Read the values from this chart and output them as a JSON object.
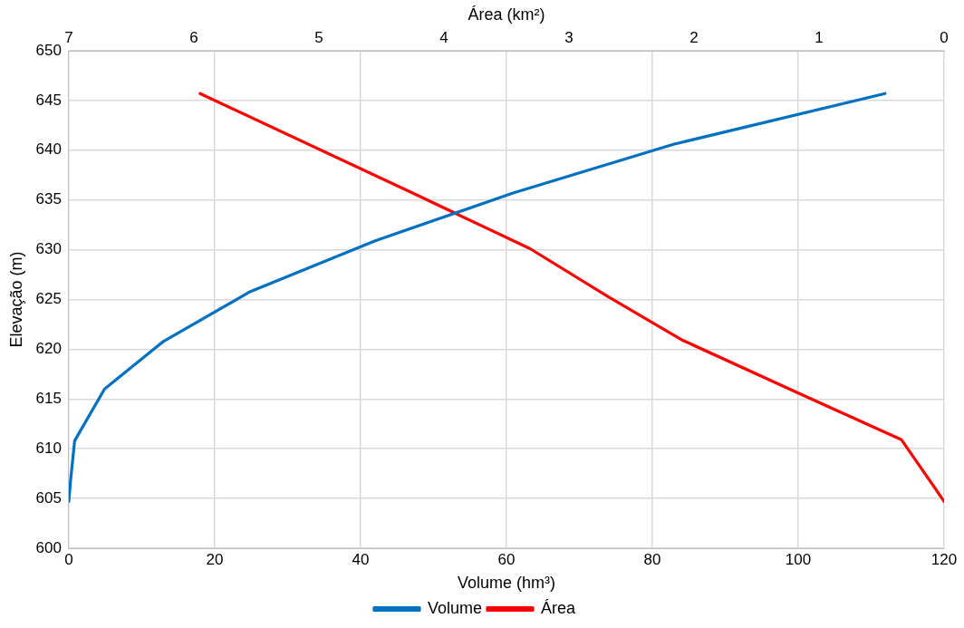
{
  "chart_data": {
    "type": "line",
    "xlabel": "Volume (hm³)",
    "x2label": "Área (km²)",
    "ylabel": "Elevação (m)",
    "xlim": [
      0,
      120
    ],
    "xticks": [
      0,
      20,
      40,
      60,
      80,
      100,
      120
    ],
    "x2lim": [
      7,
      0
    ],
    "x2ticks": [
      7,
      6,
      5,
      4,
      3,
      2,
      1,
      0
    ],
    "ylim": [
      600,
      650
    ],
    "yticks": [
      600,
      605,
      610,
      615,
      620,
      625,
      630,
      635,
      640,
      645,
      650
    ],
    "grid": true,
    "legend": "bottom",
    "marker": "none",
    "line_style": "solid",
    "series": [
      {
        "name": "Volume",
        "color": "#0070c0",
        "x": [
          0,
          0.2,
          0.8,
          4.9,
          13,
          24.9,
          42,
          60.9,
          82.9,
          111.9
        ],
        "values": [
          604.7,
          606.5,
          610.8,
          616,
          620.8,
          625.8,
          630.9,
          635.7,
          640.6,
          645.7
        ]
      },
      {
        "name": "Área",
        "color": "#ff0000",
        "axis": "x2",
        "x": [
          5.95,
          4.25,
          3.31,
          2.69,
          2.09,
          1.15,
          0.34,
          0.28,
          0.07,
          0
        ],
        "values": [
          645.7,
          635.7,
          630.1,
          625.3,
          620.9,
          615.5,
          610.9,
          609.8,
          606,
          604.7
        ]
      }
    ]
  }
}
